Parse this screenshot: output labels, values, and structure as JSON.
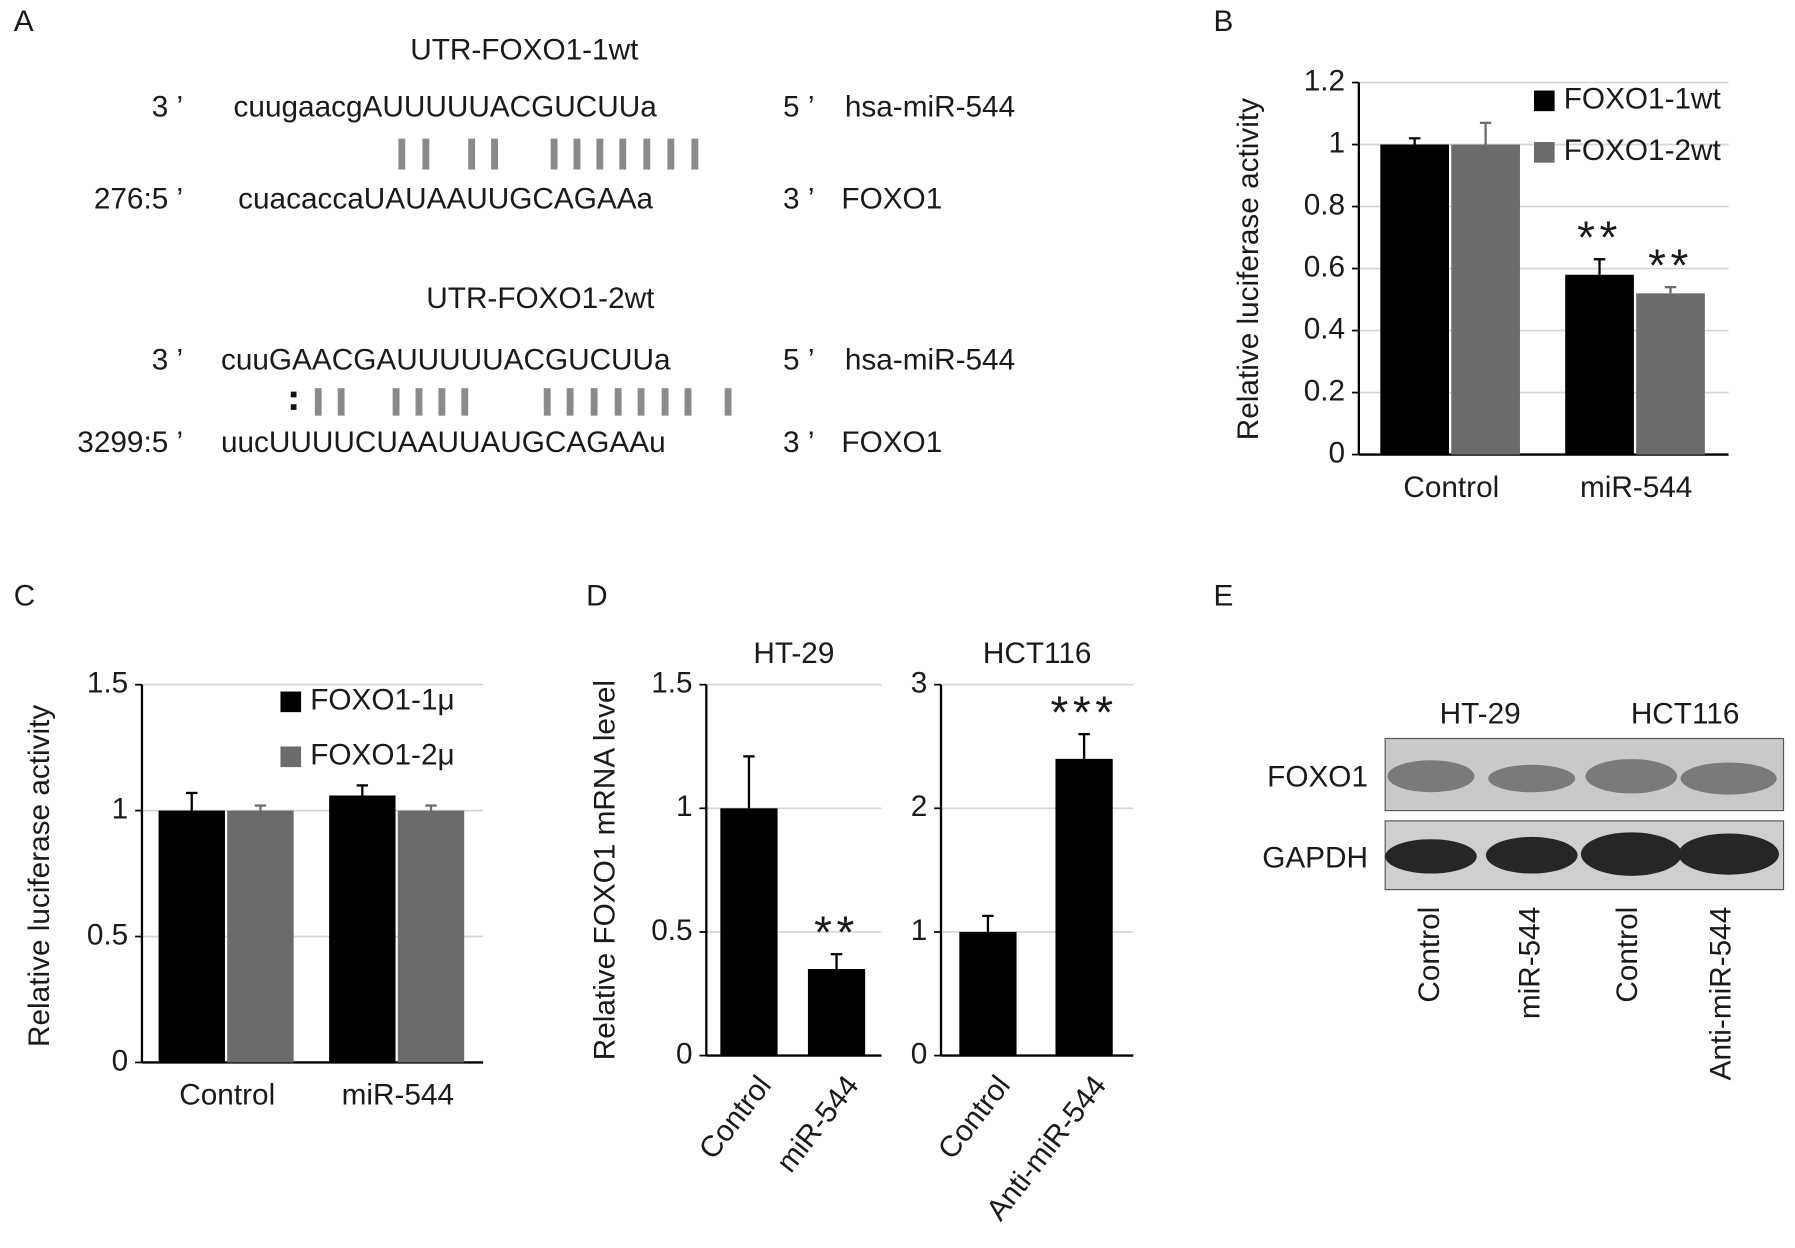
{
  "panel_labels": [
    "A",
    "B",
    "C",
    "D",
    "E"
  ],
  "alignment": [
    {
      "title": "UTR-FOXO1-1wt",
      "mirna": {
        "prefix": "3 ’",
        "seq": "cuugaacgAUUUUUACGUCUUa",
        "suffix": "5 ’",
        "name": "hsa-miR-544"
      },
      "target": {
        "prefix": "276:5 ’",
        "seq": "cuacaccaUAUAAUUGCAGAAa",
        "suffix": "3 ’",
        "name": "FOXO1"
      }
    },
    {
      "title": "UTR-FOXO1-2wt",
      "mirna": {
        "prefix": "3 ’",
        "seq": "cuuGAACGAUUUUUACGUCUUa",
        "suffix": "5 ’",
        "name": "hsa-miR-544"
      },
      "target": {
        "prefix": "3299:5 ’",
        "seq": "uucUUUUCUAAUUAUGCAGAAu",
        "suffix": "3 ’",
        "name": "FOXO1"
      }
    }
  ],
  "chart_data": [
    {
      "type": "bar",
      "ylabel": "Relative luciferase activity",
      "categories": [
        "Control",
        "miR-544"
      ],
      "series": [
        {
          "name": "FOXO1-1wt",
          "color": "#000000",
          "values": [
            1,
            0.58
          ],
          "errors": [
            0.02,
            0.05
          ],
          "significance": [
            null,
            "**"
          ]
        },
        {
          "name": "FOXO1-2wt",
          "color": "#6b6b6b",
          "values": [
            1,
            0.52
          ],
          "errors": [
            0.07,
            0.02
          ],
          "significance": [
            null,
            "**"
          ]
        }
      ],
      "ylim": [
        0,
        1.2
      ],
      "yticks": [
        0,
        0.2,
        0.4,
        0.6,
        0.8,
        1,
        1.2
      ],
      "grid": true,
      "legend": "upper right"
    },
    {
      "type": "bar",
      "ylabel": "Relative luciferase activity",
      "categories": [
        "Control",
        "miR-544"
      ],
      "series": [
        {
          "name": "FOXO1-1μ",
          "color": "#000000",
          "values": [
            1,
            1.06
          ],
          "errors": [
            0.07,
            0.04
          ]
        },
        {
          "name": "FOXO1-2μ",
          "color": "#6b6b6b",
          "values": [
            1,
            1.0
          ],
          "errors": [
            0.02,
            0.02
          ]
        }
      ],
      "ylim": [
        0,
        1.5
      ],
      "yticks": [
        0,
        0.5,
        1,
        1.5
      ],
      "grid": true,
      "legend": "upper right"
    },
    {
      "type": "bar",
      "title": "HT-29",
      "ylabel": "Relative FOXO1 mRNA level",
      "categories": [
        "Control",
        "miR-544"
      ],
      "values": [
        1,
        0.35
      ],
      "errors": [
        0.21,
        0.06
      ],
      "significance": [
        null,
        "**"
      ],
      "color": "#000000",
      "ylim": [
        0,
        1.5
      ],
      "yticks": [
        0,
        0.5,
        1,
        1.5
      ],
      "grid": true
    },
    {
      "type": "bar",
      "title": "HCT116",
      "categories": [
        "Control",
        "Anti-miR-544"
      ],
      "values": [
        1,
        2.4
      ],
      "errors": [
        0.13,
        0.2
      ],
      "significance": [
        null,
        "***"
      ],
      "color": "#000000",
      "ylim": [
        0,
        3
      ],
      "yticks": [
        0,
        1,
        2,
        3
      ],
      "grid": true
    }
  ],
  "blot": {
    "cell_lines": [
      "HT-29",
      "HCT116"
    ],
    "rows": [
      "FOXO1",
      "GAPDH"
    ],
    "lanes": [
      "Control",
      "miR-544",
      "Control",
      "Anti-miR-544"
    ]
  }
}
